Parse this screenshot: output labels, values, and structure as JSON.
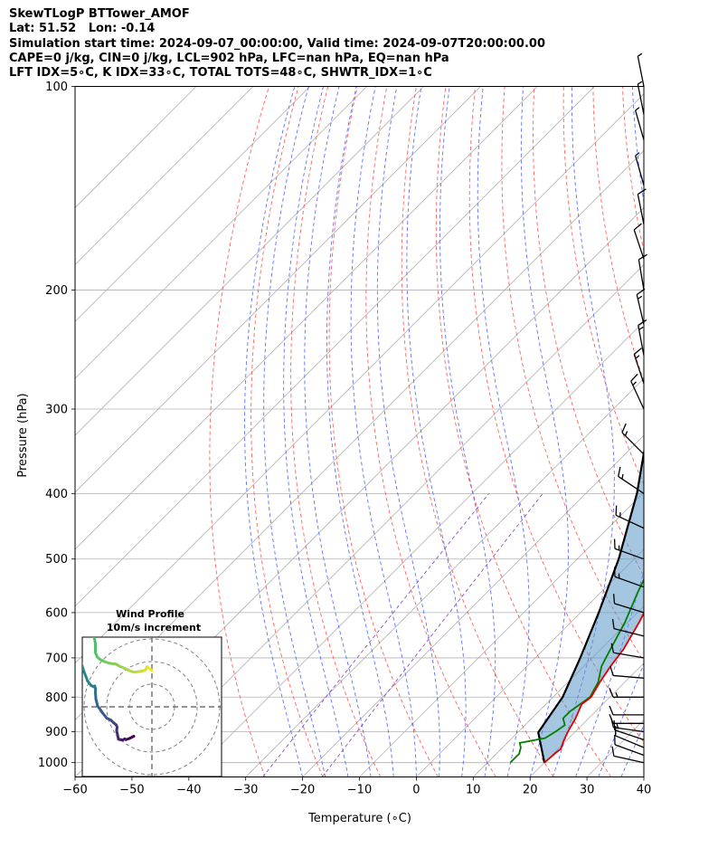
{
  "header": {
    "line1": "SkewTLogP BTTower_AMOF",
    "line2": "Lat: 51.52   Lon: -0.14",
    "line3": "Simulation start time: 2024-09-07_00:00:00, Valid time: 2024-09-07T20:00:00.00",
    "line4": "CAPE=0 j/kg, CIN=0 j/kg, LCL=902 hPa, LFC=nan hPa, EQ=nan hPa",
    "line5": "LFT IDX=5∘C, K IDX=33∘C, TOTAL TOTS=48∘C, SHWTR_IDX=1∘C"
  },
  "chart_data": {
    "type": "skew-t",
    "xlabel": "Temperature (∘C)",
    "ylabel": "Pressure (hPa)",
    "xlim": [
      -60,
      40
    ],
    "ylim": [
      1050,
      100
    ],
    "y_scale": "log",
    "grid": true,
    "x_ticks": [
      -60,
      -50,
      -40,
      -30,
      -20,
      -10,
      0,
      10,
      20,
      30,
      40
    ],
    "y_ticks": [
      1000,
      900,
      800,
      700,
      600,
      500,
      400,
      300,
      200,
      100
    ],
    "temperature": {
      "color": "#e00000",
      "p": [
        1000,
        965,
        955,
        930,
        900,
        860,
        820,
        800,
        760,
        720,
        680,
        620,
        560,
        500,
        440,
        400,
        350,
        320,
        290,
        270,
        250,
        235,
        210,
        200,
        185,
        170,
        155,
        145,
        130,
        120,
        110,
        100
      ],
      "T": [
        20,
        20.3,
        20.5,
        19.6,
        18.7,
        17.7,
        16.3,
        16.7,
        15.6,
        14.7,
        14,
        12,
        9.5,
        7,
        3.5,
        1,
        -2.8,
        -3.9,
        -4.9,
        -6.5,
        -10,
        -9,
        -3,
        -3,
        -1.8,
        -1.5,
        -0.4,
        1.7,
        2.6,
        4.6,
        7.5,
        10.5
      ]
    },
    "dewpoint": {
      "color": "#008000",
      "p": [
        1000,
        970,
        950,
        935,
        920,
        900,
        880,
        860,
        840,
        800,
        760,
        720,
        680,
        620,
        560,
        500,
        440,
        400,
        350,
        320,
        290,
        270,
        250,
        235,
        210,
        200,
        180,
        165,
        155,
        130,
        100
      ],
      "T": [
        14,
        14,
        13.2,
        12.2,
        15.8,
        16.5,
        17,
        15.5,
        15.5,
        16.5,
        15.3,
        13.1,
        11.7,
        9.5,
        6.5,
        3.5,
        0,
        -2.5,
        -7.3,
        -10.5,
        -13.6,
        -14.1,
        -17,
        -17.5,
        -20.3,
        -25,
        -25.5,
        -25.7,
        -25.2,
        -23,
        -19
      ]
    },
    "parcel": {
      "color": "#000000",
      "p": [
        1000,
        902,
        800,
        700,
        600,
        500,
        400,
        300,
        250,
        200,
        150,
        100
      ],
      "T": [
        20,
        13.6,
        11.7,
        7.9,
        3.2,
        -2.7,
        -11,
        -23.3,
        -32.4,
        -43.4,
        -55.5,
        -68
      ]
    },
    "shading": "area between temperature and parcel profiles (light blue)",
    "wind_barbs": {
      "p": [
        1000,
        975,
        950,
        925,
        900,
        875,
        850,
        800,
        750,
        700,
        650,
        600,
        550,
        500,
        450,
        400,
        350,
        300,
        275,
        250,
        225,
        200,
        180,
        160,
        140,
        120,
        110,
        100
      ],
      "u": [
        -9,
        -11,
        -12,
        -12,
        -14,
        -11,
        -10,
        -14,
        -12,
        -12,
        -12,
        -13,
        -14,
        -14,
        -13,
        -12,
        -10,
        -6,
        -5,
        -3,
        -4,
        -2,
        -3,
        -2,
        -2,
        -2,
        -1,
        -1
      ],
      "v": [
        2,
        4,
        5,
        4,
        2,
        0,
        0,
        0,
        1,
        2,
        3,
        4,
        5,
        5,
        6,
        8,
        10,
        13,
        15,
        16,
        17,
        12,
        9,
        10,
        7,
        7,
        5,
        5
      ]
    },
    "inset": {
      "title_line1": "Wind Profile",
      "title_line2": "10m/s increment",
      "rings_ms": [
        10,
        20,
        30
      ],
      "hodograph_u": [
        -8,
        -10,
        -11.5,
        -12,
        -13,
        -14,
        -14.8,
        -15.2,
        -15.6,
        -15.4,
        -15.8,
        -17,
        -18,
        -20,
        -22,
        -23,
        -24,
        -24.8,
        -25,
        -24.9,
        -25.3,
        -25.6,
        -27,
        -28.5,
        -30,
        -31.5,
        -32,
        -32.3,
        -32.6,
        -32.6,
        -33,
        -31.8,
        -30,
        -28,
        -26,
        -25,
        -25,
        -24.2,
        -23,
        -21,
        -19,
        -16,
        -14,
        -12,
        -10,
        -8,
        -5.5,
        -3,
        -2,
        -1.6,
        0,
        -0.8
      ],
      "hodograph_v": [
        -13,
        -14,
        -14.5,
        -14.2,
        -14.7,
        -14.5,
        -14.3,
        -12.5,
        -10.5,
        -9,
        -8,
        -7,
        -6,
        -5,
        -2.5,
        -1,
        0.3,
        3.5,
        6.6,
        7.8,
        9.2,
        8.8,
        9.5,
        11.5,
        15.5,
        20,
        25,
        30,
        35,
        40,
        44,
        45,
        42,
        38,
        33,
        28,
        24,
        22,
        21,
        20,
        19.3,
        18.9,
        17.8,
        17,
        16,
        15.3,
        15.6,
        16.1,
        17.7,
        17.2,
        16,
        16.6
      ],
      "colormap": [
        "#440154",
        "#3b528b",
        "#21918c",
        "#5ec962",
        "#fde725"
      ]
    }
  }
}
